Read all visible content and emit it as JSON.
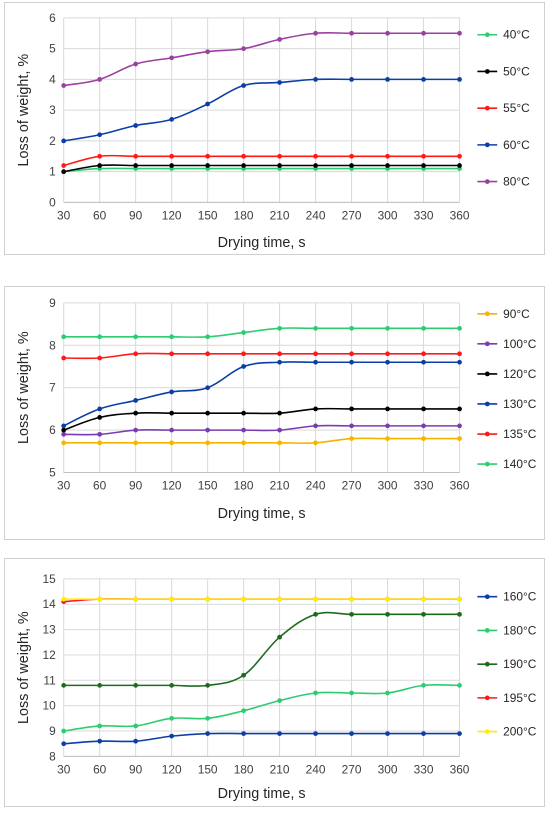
{
  "chart_data": [
    {
      "type": "line",
      "xlabel": "Drying time, s",
      "ylabel": "Loss of weight, %",
      "x": [
        30,
        60,
        90,
        120,
        150,
        180,
        210,
        240,
        270,
        300,
        330,
        360
      ],
      "xlim": [
        30,
        360
      ],
      "ylim": [
        0,
        6
      ],
      "yticks": [
        0,
        1,
        2,
        3,
        4,
        5,
        6
      ],
      "grid": true,
      "legend": "right",
      "series": [
        {
          "name": "40°C",
          "color": "#2ecc71",
          "values": [
            1.0,
            1.1,
            1.1,
            1.1,
            1.1,
            1.1,
            1.1,
            1.1,
            1.1,
            1.1,
            1.1,
            1.1
          ]
        },
        {
          "name": "50°C",
          "color": "#000000",
          "values": [
            1.0,
            1.2,
            1.2,
            1.2,
            1.2,
            1.2,
            1.2,
            1.2,
            1.2,
            1.2,
            1.2,
            1.2
          ]
        },
        {
          "name": "55°C",
          "color": "#ff1a1a",
          "values": [
            1.2,
            1.5,
            1.5,
            1.5,
            1.5,
            1.5,
            1.5,
            1.5,
            1.5,
            1.5,
            1.5,
            1.5
          ]
        },
        {
          "name": "60°C",
          "color": "#0b3fa6",
          "values": [
            2.0,
            2.2,
            2.5,
            2.7,
            3.2,
            3.8,
            3.9,
            4.0,
            4.0,
            4.0,
            4.0,
            4.0
          ]
        },
        {
          "name": "80°C",
          "color": "#9b3fa0",
          "values": [
            3.8,
            4.0,
            4.5,
            4.7,
            4.9,
            5.0,
            5.3,
            5.5,
            5.5,
            5.5,
            5.5,
            5.5
          ]
        }
      ]
    },
    {
      "type": "line",
      "xlabel": "Drying time, s",
      "ylabel": "Loss of weight, %",
      "x": [
        30,
        60,
        90,
        120,
        150,
        180,
        210,
        240,
        270,
        300,
        330,
        360
      ],
      "xlim": [
        30,
        360
      ],
      "ylim": [
        5,
        9
      ],
      "yticks": [
        5,
        6,
        7,
        8,
        9
      ],
      "grid": true,
      "legend": "right",
      "series": [
        {
          "name": "90°C",
          "color": "#f5b400",
          "values": [
            5.7,
            5.7,
            5.7,
            5.7,
            5.7,
            5.7,
            5.7,
            5.7,
            5.8,
            5.8,
            5.8,
            5.8
          ]
        },
        {
          "name": "100°C",
          "color": "#7a3cb0",
          "values": [
            5.9,
            5.9,
            6.0,
            6.0,
            6.0,
            6.0,
            6.0,
            6.1,
            6.1,
            6.1,
            6.1,
            6.1
          ]
        },
        {
          "name": "120°C",
          "color": "#000000",
          "values": [
            6.0,
            6.3,
            6.4,
            6.4,
            6.4,
            6.4,
            6.4,
            6.5,
            6.5,
            6.5,
            6.5,
            6.5
          ]
        },
        {
          "name": "130°C",
          "color": "#0b3fa6",
          "values": [
            6.1,
            6.5,
            6.7,
            6.9,
            7.0,
            7.5,
            7.6,
            7.6,
            7.6,
            7.6,
            7.6,
            7.6
          ]
        },
        {
          "name": "135°C",
          "color": "#ff1a1a",
          "values": [
            7.7,
            7.7,
            7.8,
            7.8,
            7.8,
            7.8,
            7.8,
            7.8,
            7.8,
            7.8,
            7.8,
            7.8
          ]
        },
        {
          "name": "140°C",
          "color": "#2ecc71",
          "values": [
            8.2,
            8.2,
            8.2,
            8.2,
            8.2,
            8.3,
            8.4,
            8.4,
            8.4,
            8.4,
            8.4,
            8.4
          ]
        }
      ]
    },
    {
      "type": "line",
      "xlabel": "Drying time, s",
      "ylabel": "Loss of weight, %",
      "x": [
        30,
        60,
        90,
        120,
        150,
        180,
        210,
        240,
        270,
        300,
        330,
        360
      ],
      "xlim": [
        30,
        360
      ],
      "ylim": [
        8,
        15
      ],
      "yticks": [
        8,
        9,
        10,
        11,
        12,
        13,
        14,
        15
      ],
      "grid": true,
      "legend": "right",
      "series": [
        {
          "name": "160°C",
          "color": "#0b3fa6",
          "values": [
            8.5,
            8.6,
            8.6,
            8.8,
            8.9,
            8.9,
            8.9,
            8.9,
            8.9,
            8.9,
            8.9,
            8.9
          ]
        },
        {
          "name": "180°C",
          "color": "#2ecc71",
          "values": [
            9.0,
            9.2,
            9.2,
            9.5,
            9.5,
            9.8,
            10.2,
            10.5,
            10.5,
            10.5,
            10.8,
            10.8
          ]
        },
        {
          "name": "190°C",
          "color": "#1e6b1e",
          "values": [
            10.8,
            10.8,
            10.8,
            10.8,
            10.8,
            11.2,
            12.7,
            13.6,
            13.6,
            13.6,
            13.6,
            13.6
          ]
        },
        {
          "name": "195°C",
          "color": "#ff1a1a",
          "values": [
            14.1,
            14.2,
            14.2,
            14.2,
            14.2,
            14.2,
            14.2,
            14.2,
            14.2,
            14.2,
            14.2,
            14.2
          ]
        },
        {
          "name": "200°C",
          "color": "#ffee00",
          "values": [
            14.2,
            14.2,
            14.2,
            14.2,
            14.2,
            14.2,
            14.2,
            14.2,
            14.2,
            14.2,
            14.2,
            14.2
          ]
        }
      ]
    }
  ]
}
